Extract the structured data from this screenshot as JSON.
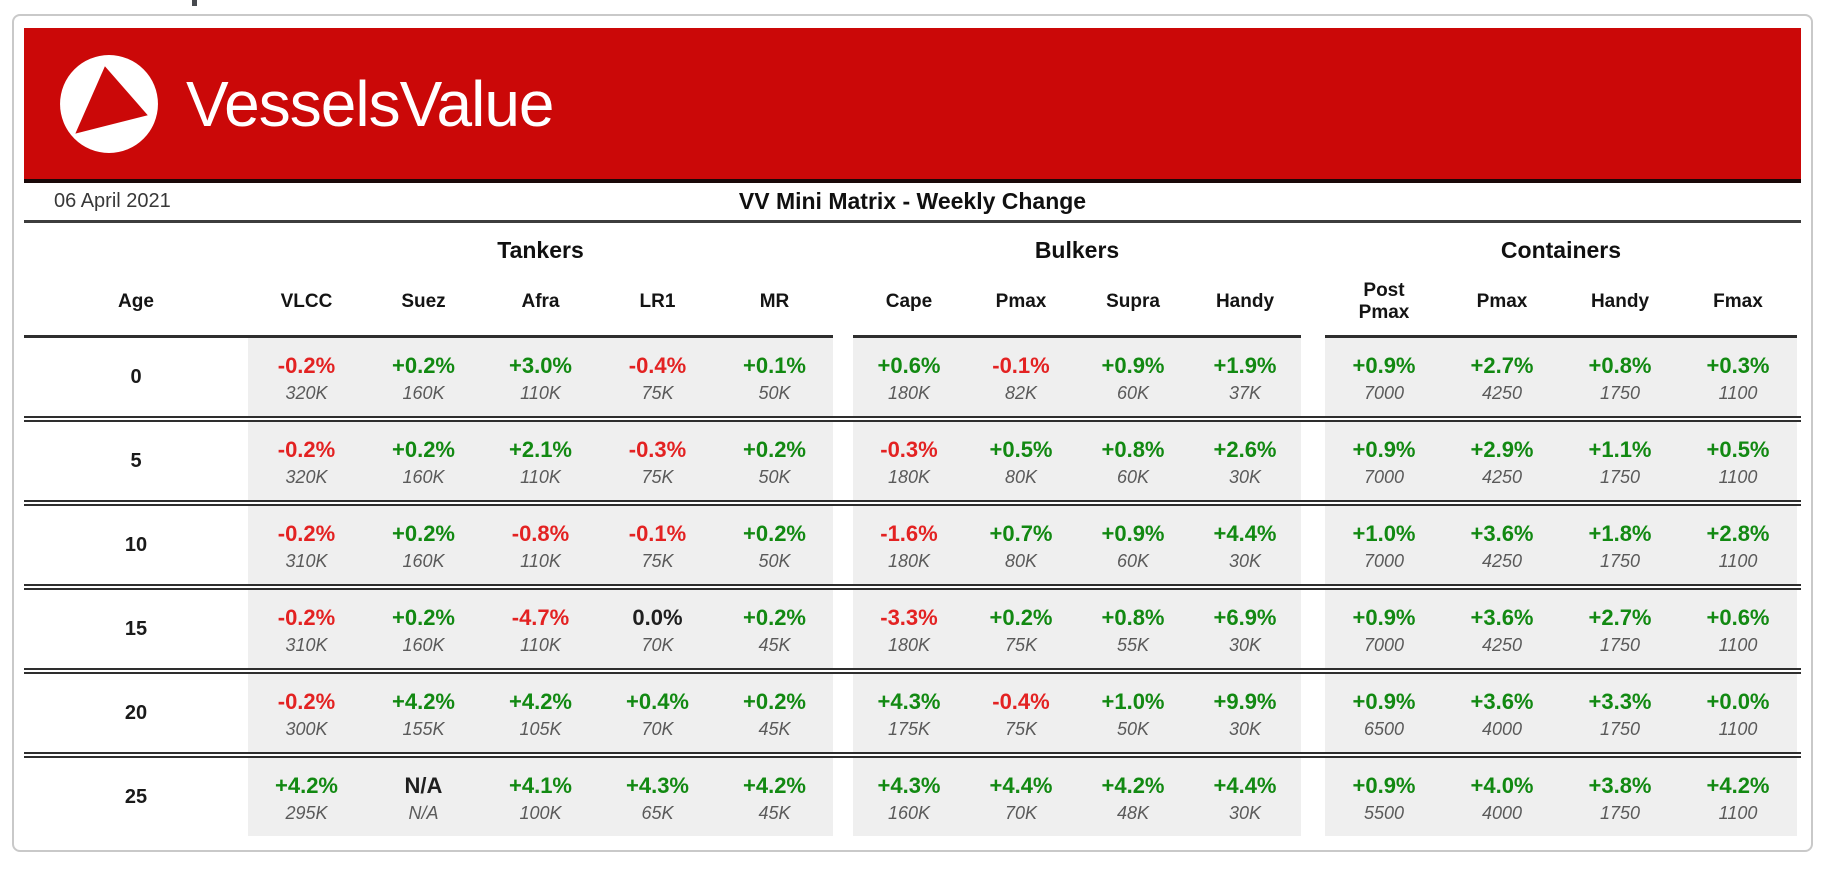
{
  "brand": {
    "name": "VesselsValue",
    "banner_color": "#cb0808",
    "logo_icon": "play-triangle-in-circle"
  },
  "report": {
    "date": "06 April 2021",
    "title": "VV Mini Matrix - Weekly Change"
  },
  "colors": {
    "positive_change": "#128912",
    "negative_change": "#e32222",
    "neutral_change": "#1f1f1f",
    "cell_background": "#efefef",
    "size_text": "#5a5a5a"
  },
  "chart_data": {
    "type": "table",
    "title": "VV Mini Matrix - Weekly Change",
    "date": "06 April 2021",
    "age_header": "Age",
    "column_groups": [
      {
        "label": "Tankers",
        "columns": [
          "VLCC",
          "Suez",
          "Afra",
          "LR1",
          "MR"
        ]
      },
      {
        "label": "Bulkers",
        "columns": [
          "Cape",
          "Pmax",
          "Supra",
          "Handy"
        ]
      },
      {
        "label": "Containers",
        "columns": [
          "Post\nPmax",
          "Pmax",
          "Handy",
          "Fmax"
        ]
      }
    ],
    "rows": [
      {
        "age": "0",
        "changes": [
          "-0.2%",
          "+0.2%",
          "+3.0%",
          "-0.4%",
          "+0.1%",
          "+0.6%",
          "-0.1%",
          "+0.9%",
          "+1.9%",
          "+0.9%",
          "+2.7%",
          "+0.8%",
          "+0.3%"
        ],
        "sizes": [
          "320K",
          "160K",
          "110K",
          "75K",
          "50K",
          "180K",
          "82K",
          "60K",
          "37K",
          "7000",
          "4250",
          "1750",
          "1100"
        ]
      },
      {
        "age": "5",
        "changes": [
          "-0.2%",
          "+0.2%",
          "+2.1%",
          "-0.3%",
          "+0.2%",
          "-0.3%",
          "+0.5%",
          "+0.8%",
          "+2.6%",
          "+0.9%",
          "+2.9%",
          "+1.1%",
          "+0.5%"
        ],
        "sizes": [
          "320K",
          "160K",
          "110K",
          "75K",
          "50K",
          "180K",
          "80K",
          "60K",
          "30K",
          "7000",
          "4250",
          "1750",
          "1100"
        ]
      },
      {
        "age": "10",
        "changes": [
          "-0.2%",
          "+0.2%",
          "-0.8%",
          "-0.1%",
          "+0.2%",
          "-1.6%",
          "+0.7%",
          "+0.9%",
          "+4.4%",
          "+1.0%",
          "+3.6%",
          "+1.8%",
          "+2.8%"
        ],
        "sizes": [
          "310K",
          "160K",
          "110K",
          "75K",
          "50K",
          "180K",
          "80K",
          "60K",
          "30K",
          "7000",
          "4250",
          "1750",
          "1100"
        ]
      },
      {
        "age": "15",
        "changes": [
          "-0.2%",
          "+0.2%",
          "-4.7%",
          "0.0%",
          "+0.2%",
          "-3.3%",
          "+0.2%",
          "+0.8%",
          "+6.9%",
          "+0.9%",
          "+3.6%",
          "+2.7%",
          "+0.6%"
        ],
        "sizes": [
          "310K",
          "160K",
          "110K",
          "70K",
          "45K",
          "180K",
          "75K",
          "55K",
          "30K",
          "7000",
          "4250",
          "1750",
          "1100"
        ]
      },
      {
        "age": "20",
        "changes": [
          "-0.2%",
          "+4.2%",
          "+4.2%",
          "+0.4%",
          "+0.2%",
          "+4.3%",
          "-0.4%",
          "+1.0%",
          "+9.9%",
          "+0.9%",
          "+3.6%",
          "+3.3%",
          "+0.0%"
        ],
        "sizes": [
          "300K",
          "155K",
          "105K",
          "70K",
          "45K",
          "175K",
          "75K",
          "50K",
          "30K",
          "6500",
          "4000",
          "1750",
          "1100"
        ]
      },
      {
        "age": "25",
        "changes": [
          "+4.2%",
          "N/A",
          "+4.1%",
          "+4.3%",
          "+4.2%",
          "+4.3%",
          "+4.4%",
          "+4.2%",
          "+4.4%",
          "+0.9%",
          "+4.0%",
          "+3.8%",
          "+4.2%"
        ],
        "sizes": [
          "295K",
          "N/A",
          "100K",
          "65K",
          "45K",
          "160K",
          "70K",
          "48K",
          "30K",
          "5500",
          "4000",
          "1750",
          "1100"
        ]
      }
    ]
  }
}
